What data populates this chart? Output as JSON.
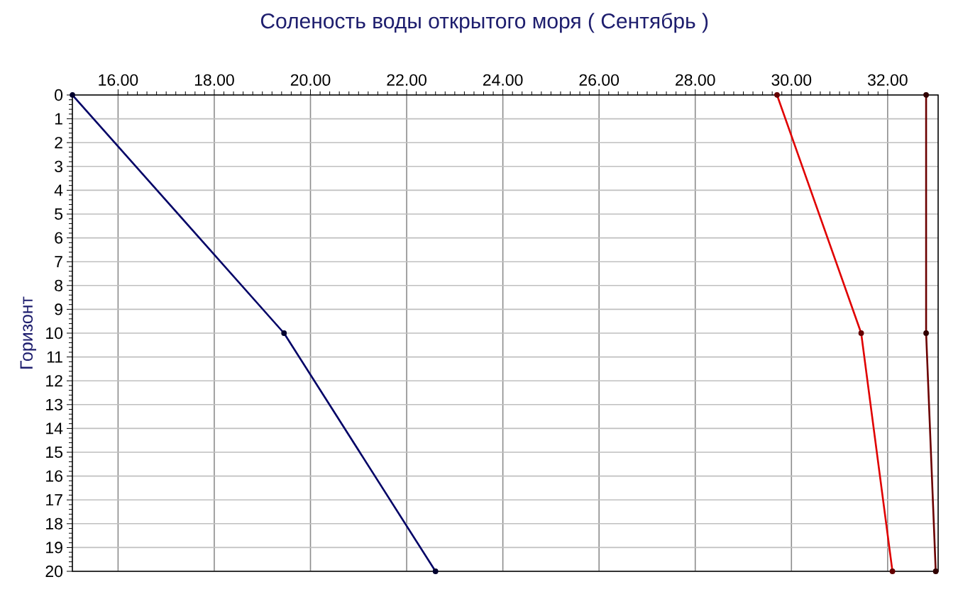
{
  "chart_data": {
    "type": "line",
    "title": "Соленость воды открытого моря ( Сентябрь )",
    "ylabel": "Горизонт",
    "series": [
      {
        "color": "#000066",
        "x": [
          15.05,
          19.45,
          22.6
        ],
        "values": [
          0,
          10,
          20
        ]
      },
      {
        "color": "#e00000",
        "x": [
          29.7,
          31.45,
          32.1
        ],
        "values": [
          0,
          10,
          20
        ]
      },
      {
        "color": "#6b0000",
        "x": [
          32.8,
          32.8,
          33.0
        ],
        "values": [
          0,
          10,
          20
        ]
      }
    ],
    "xlim": [
      15.05,
      33.05
    ],
    "xticks": [
      {
        "value": 16,
        "label": "16.00"
      },
      {
        "value": 18,
        "label": "18.00"
      },
      {
        "value": 20,
        "label": "20.00"
      },
      {
        "value": 22,
        "label": "22.00"
      },
      {
        "value": 24,
        "label": "24.00"
      },
      {
        "value": 26,
        "label": "26.00"
      },
      {
        "value": 28,
        "label": "28.00"
      },
      {
        "value": 30,
        "label": "30.00"
      },
      {
        "value": 32,
        "label": "32.00"
      }
    ],
    "ylim": [
      20,
      0
    ],
    "yticks": [
      0,
      1,
      2,
      3,
      4,
      5,
      6,
      7,
      8,
      9,
      10,
      11,
      12,
      13,
      14,
      15,
      16,
      17,
      18,
      19,
      20
    ],
    "grid": true,
    "marker": "circle",
    "line_style": "solid"
  }
}
